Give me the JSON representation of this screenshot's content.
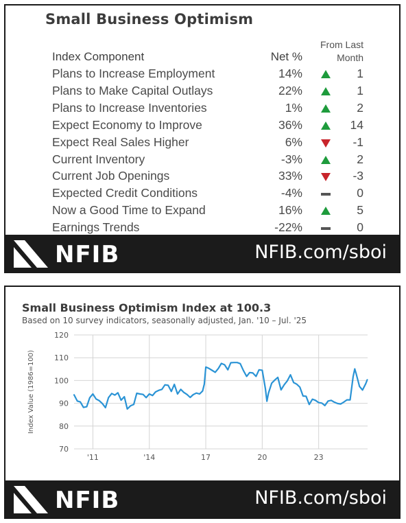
{
  "table_card": {
    "title": "Small Business Optimism",
    "header": {
      "component": "Index Component",
      "net": "Net %",
      "from_last_line1": "From Last",
      "from_last_line2": "Month"
    },
    "rows": [
      {
        "name": "Plans to Increase Employment",
        "net": "14%",
        "direction": "up",
        "change": "1"
      },
      {
        "name": "Plans to Make Capital Outlays",
        "net": "22%",
        "direction": "up",
        "change": "1"
      },
      {
        "name": "Plans to Increase Inventories",
        "net": "1%",
        "direction": "up",
        "change": "2"
      },
      {
        "name": "Expect Economy to Improve",
        "net": "36%",
        "direction": "up",
        "change": "14"
      },
      {
        "name": "Expect Real Sales Higher",
        "net": "6%",
        "direction": "down",
        "change": "-1"
      },
      {
        "name": "Current Inventory",
        "net": "-3%",
        "direction": "up",
        "change": "2"
      },
      {
        "name": "Current Job Openings",
        "net": "33%",
        "direction": "down",
        "change": "-3"
      },
      {
        "name": "Expected Credit Conditions",
        "net": "-4%",
        "direction": "flat",
        "change": "0"
      },
      {
        "name": "Now a Good Time to Expand",
        "net": "16%",
        "direction": "up",
        "change": "5"
      },
      {
        "name": "Earnings Trends",
        "net": "-22%",
        "direction": "flat",
        "change": "0"
      }
    ],
    "colors": {
      "up": "#1e9b3c",
      "down": "#c8242b",
      "flat": "#555555"
    }
  },
  "footer": {
    "logo_text": "NFIB",
    "url": "NFIB.com/sboi"
  },
  "chart_card": {
    "title": "Small Business Optimism Index at 100.3",
    "subtitle": "Based on 10 survey indicators, seasonally adjusted,  Jan. '10 – Jul. '25"
  },
  "chart_data": {
    "type": "line",
    "title": "Small Business Optimism Index at 100.3",
    "subtitle": "Based on 10 survey indicators, seasonally adjusted,  Jan. '10 – Jul. '25",
    "xlabel": "",
    "ylabel": "Index Value (1986=100)",
    "ylim": [
      70,
      120
    ],
    "yticks": [
      70,
      80,
      90,
      100,
      110,
      120
    ],
    "xlim": [
      2010.0,
      2025.6
    ],
    "xticks": [
      {
        "value": 2011,
        "label": "'11"
      },
      {
        "value": 2014,
        "label": "'14"
      },
      {
        "value": 2017,
        "label": "17"
      },
      {
        "value": 2020,
        "label": "20"
      },
      {
        "value": 2023,
        "label": "23"
      }
    ],
    "grid": true,
    "line_color": "#2a93d5",
    "series": [
      {
        "x": [
          2010.0,
          2010.17,
          2010.33,
          2010.5,
          2010.67,
          2010.83,
          2011.0,
          2011.17,
          2011.33,
          2011.5,
          2011.67,
          2011.83,
          2012.0,
          2012.17,
          2012.33,
          2012.5,
          2012.67,
          2012.83,
          2013.0,
          2013.17,
          2013.33,
          2013.5,
          2013.67,
          2013.83,
          2014.0,
          2014.17,
          2014.33,
          2014.5,
          2014.67,
          2014.83,
          2015.0,
          2015.17,
          2015.33,
          2015.5,
          2015.67,
          2015.83,
          2016.0,
          2016.17,
          2016.33,
          2016.5,
          2016.67,
          2016.83,
          2016.92,
          2017.0,
          2017.17,
          2017.33,
          2017.5,
          2017.67,
          2017.83,
          2018.0,
          2018.17,
          2018.33,
          2018.5,
          2018.67,
          2018.83,
          2019.0,
          2019.17,
          2019.33,
          2019.5,
          2019.67,
          2019.83,
          2020.0,
          2020.17,
          2020.25,
          2020.33,
          2020.5,
          2020.67,
          2020.83,
          2021.0,
          2021.17,
          2021.33,
          2021.5,
          2021.67,
          2021.83,
          2022.0,
          2022.17,
          2022.33,
          2022.5,
          2022.67,
          2022.83,
          2023.0,
          2023.17,
          2023.33,
          2023.5,
          2023.67,
          2023.83,
          2024.0,
          2024.17,
          2024.33,
          2024.5,
          2024.67,
          2024.83,
          2024.92,
          2025.0,
          2025.17,
          2025.33,
          2025.5,
          2025.58
        ],
        "y": [
          93.7,
          91.0,
          90.6,
          88.2,
          88.5,
          92.4,
          94.1,
          91.9,
          91.2,
          89.9,
          88.1,
          92.5,
          94.3,
          93.6,
          94.6,
          91.4,
          92.9,
          87.5,
          88.9,
          89.5,
          94.4,
          94.1,
          93.9,
          92.5,
          94.1,
          93.4,
          95.0,
          95.7,
          96.1,
          98.1,
          97.9,
          95.2,
          98.3,
          94.1,
          96.1,
          94.8,
          93.9,
          92.6,
          93.8,
          94.5,
          94.1,
          95.4,
          98.4,
          105.9,
          105.3,
          104.5,
          103.6,
          105.3,
          107.5,
          106.9,
          104.7,
          107.8,
          107.9,
          107.9,
          107.4,
          104.4,
          101.8,
          103.5,
          103.3,
          101.8,
          104.7,
          104.5,
          96.4,
          90.9,
          94.4,
          98.8,
          100.2,
          101.4,
          95.9,
          98.2,
          99.8,
          102.5,
          99.1,
          98.4,
          97.1,
          93.2,
          93.1,
          89.5,
          91.8,
          91.3,
          90.3,
          90.1,
          89.0,
          91.0,
          91.3,
          90.5,
          89.9,
          89.7,
          90.5,
          91.5,
          91.5,
          101.7,
          105.1,
          102.8,
          97.4,
          95.8,
          98.6,
          100.3
        ]
      }
    ]
  }
}
